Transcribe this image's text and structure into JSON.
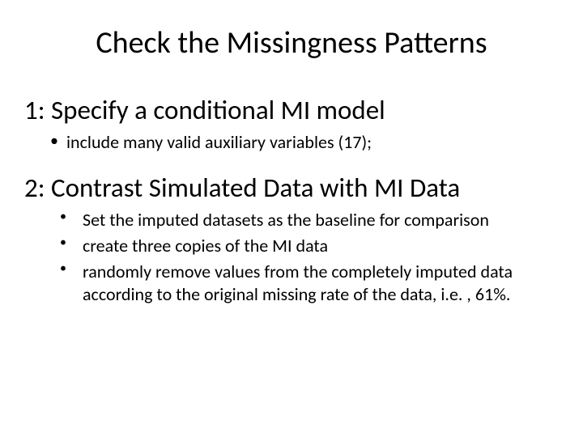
{
  "title": "Check the Missingness Patterns",
  "section1": {
    "heading": "1: Specify a conditional MI model",
    "items": [
      "include many valid auxiliary variables (17);"
    ]
  },
  "section2": {
    "heading": "2: Contrast Simulated Data with MI Data",
    "items": [
      "Set the imputed datasets as the baseline for comparison",
      "create three copies of the MI data",
      "randomly remove values from the completely imputed data according to the original missing rate of the data, i.e. , 61%."
    ]
  },
  "styling": {
    "background_color": "#ffffff",
    "text_color": "#000000",
    "font_family": "Calibri",
    "title_fontsize": 38,
    "heading_fontsize": 33,
    "bullet_fontsize": 22,
    "slide_width": 720,
    "slide_height": 540
  }
}
